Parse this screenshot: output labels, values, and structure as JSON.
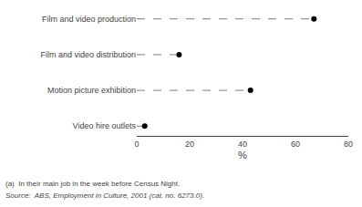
{
  "chart_data": {
    "type": "dot",
    "orientation": "horizontal",
    "categories": [
      "Film and video production",
      "Film and video distribution",
      "Motion picture exhibition",
      "Video hire outlets"
    ],
    "values": [
      67,
      16,
      43,
      3
    ],
    "color": "#000000",
    "marker": "circle",
    "line_style": "dashed",
    "xlabel": "%",
    "xlim": [
      0,
      80
    ],
    "xticks": [
      0,
      20,
      40,
      60,
      80
    ],
    "grid": false,
    "annotations": [
      "(a)  In their main job in the week before Census Night.",
      "Source:  ABS, Employment in Culture, 2001 (cat. no. 6273.0)."
    ]
  }
}
